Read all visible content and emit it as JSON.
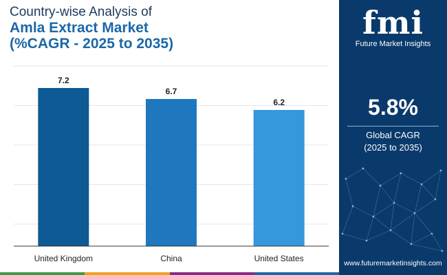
{
  "title": {
    "line1": "Country-wise Analysis of",
    "line2": "Amla Extract Market",
    "line3": "(%CAGR - 2025 to 2035)"
  },
  "chart_data": {
    "type": "bar",
    "categories": [
      "United Kingdom",
      "China",
      "United States"
    ],
    "values": [
      7.2,
      6.7,
      6.2
    ],
    "ylim": [
      0,
      7.2
    ],
    "grid": true,
    "bar_colors": [
      "#0d5a94",
      "#1f78bd",
      "#3597dc"
    ]
  },
  "sidebar": {
    "logo_mark": "fmi",
    "logo_text": "Future Market Insights",
    "cagr_value": "5.8%",
    "cagr_label_line1": "Global CAGR",
    "cagr_label_line2": "(2025 to 2035)",
    "website": "www.futuremarketinsights.com"
  },
  "colors": {
    "sidebar_bg": "#0a3a6b",
    "title_dark": "#1b3a5c",
    "title_accent": "#1b67a8",
    "stripe": [
      "#3c9b46",
      "#f0a21e",
      "#8a2b87",
      "#1b67a8"
    ]
  }
}
